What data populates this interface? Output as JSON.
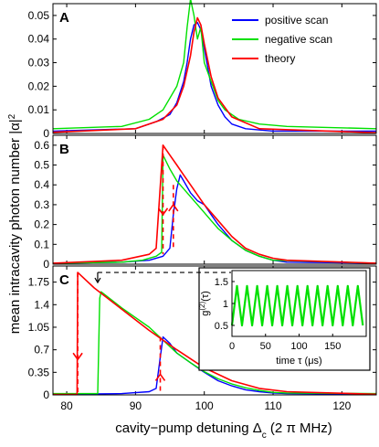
{
  "colors": {
    "positive": "#0000ff",
    "negative": "#00e000",
    "theory": "#ff0000",
    "arrow": "#ff0000",
    "axis": "#000000"
  },
  "figure": {
    "ylabel": "mean intracavity photon number |α|²",
    "ylabel_main": "mean intracavity photon number |α|",
    "ylabel_sup": "2",
    "xlabel_main": "cavity−pump detuning Δ",
    "xlabel_sub": "c",
    "xlabel_tail": " (2 π MHz)"
  },
  "legend": {
    "positive": "positive scan",
    "negative": "negative scan",
    "theory": "theory"
  },
  "inset": {
    "ylabel_main": "g",
    "ylabel_sup": "(2)",
    "ylabel_tail": "(τ)",
    "xlabel": "time τ (μs)"
  },
  "chart_data": [
    {
      "type": "line",
      "panel_label": "A",
      "xlim": [
        78,
        125
      ],
      "ylim": [
        0,
        0.055
      ],
      "yticks": [
        "0",
        "0.01",
        "0.02",
        "0.03",
        "0.04",
        "0.05"
      ],
      "ytick_values": [
        0,
        0.01,
        0.02,
        0.03,
        0.04,
        0.05
      ],
      "xticks": [],
      "series": [
        {
          "name": "positive scan",
          "x": [
            78,
            90,
            93,
            95,
            96,
            97,
            97.5,
            98,
            98.5,
            99,
            99.5,
            100,
            100.5,
            101,
            102,
            103,
            104,
            106,
            110,
            125
          ],
          "y": [
            0.001,
            0.002,
            0.005,
            0.008,
            0.013,
            0.022,
            0.03,
            0.04,
            0.046,
            0.047,
            0.044,
            0.036,
            0.028,
            0.02,
            0.012,
            0.007,
            0.004,
            0.002,
            0.001,
            0.001
          ]
        },
        {
          "name": "negative scan",
          "x": [
            78,
            88,
            92,
            94,
            96,
            97,
            97.5,
            98,
            98.5,
            99,
            99.5,
            100,
            101,
            102,
            103,
            105,
            108,
            112,
            125
          ],
          "y": [
            0.002,
            0.003,
            0.006,
            0.01,
            0.02,
            0.03,
            0.045,
            0.057,
            0.05,
            0.04,
            0.045,
            0.03,
            0.022,
            0.014,
            0.01,
            0.006,
            0.004,
            0.003,
            0.002
          ]
        },
        {
          "name": "theory",
          "x": [
            78,
            90,
            94,
            96,
            97,
            98,
            98.5,
            99,
            99.5,
            100,
            101,
            102,
            104,
            108,
            125
          ],
          "y": [
            0.0005,
            0.002,
            0.006,
            0.012,
            0.02,
            0.033,
            0.043,
            0.049,
            0.046,
            0.038,
            0.024,
            0.015,
            0.007,
            0.002,
            0.0003
          ]
        }
      ]
    },
    {
      "type": "line",
      "panel_label": "B",
      "xlim": [
        78,
        125
      ],
      "ylim": [
        0,
        0.65
      ],
      "yticks": [
        "0",
        "0.1",
        "0.2",
        "0.3",
        "0.4",
        "0.5",
        "0.6"
      ],
      "ytick_values": [
        0,
        0.1,
        0.2,
        0.3,
        0.4,
        0.5,
        0.6
      ],
      "xticks": [],
      "series": [
        {
          "name": "positive scan",
          "x": [
            78,
            88,
            92,
            94,
            95,
            95.5,
            96,
            96.5,
            97,
            98,
            99,
            100,
            101,
            102,
            103,
            104,
            106,
            108,
            110,
            112,
            125
          ],
          "y": [
            0.005,
            0.01,
            0.02,
            0.04,
            0.08,
            0.25,
            0.38,
            0.45,
            0.42,
            0.36,
            0.32,
            0.3,
            0.25,
            0.2,
            0.16,
            0.12,
            0.07,
            0.04,
            0.02,
            0.01,
            0.005
          ]
        },
        {
          "name": "negative scan",
          "x": [
            78,
            88,
            91,
            93,
            93.8,
            94,
            95,
            96,
            97,
            98,
            99,
            100,
            101,
            102,
            103,
            104,
            106,
            108,
            110,
            125
          ],
          "y": [
            0.005,
            0.01,
            0.02,
            0.04,
            0.06,
            0.55,
            0.48,
            0.42,
            0.38,
            0.34,
            0.3,
            0.26,
            0.22,
            0.18,
            0.15,
            0.12,
            0.07,
            0.04,
            0.02,
            0.005
          ]
        },
        {
          "name": "theory",
          "x": [
            78,
            88,
            92,
            93,
            94,
            95,
            96,
            97,
            98,
            100,
            102,
            104,
            106,
            108,
            110,
            112,
            125
          ],
          "y": [
            0.005,
            0.02,
            0.05,
            0.08,
            0.6,
            0.55,
            0.5,
            0.45,
            0.4,
            0.3,
            0.22,
            0.14,
            0.08,
            0.05,
            0.03,
            0.02,
            0.005
          ]
        }
      ]
    },
    {
      "type": "line",
      "panel_label": "C",
      "xlim": [
        78,
        125
      ],
      "ylim": [
        0,
        2.0
      ],
      "yticks": [
        "0",
        "0.35",
        "0.7",
        "1.05",
        "1.4",
        "1.75"
      ],
      "ytick_values": [
        0,
        0.35,
        0.7,
        1.05,
        1.4,
        1.75
      ],
      "xticks": [
        "80",
        "90",
        "100",
        "110",
        "120"
      ],
      "xtick_values": [
        80,
        90,
        100,
        110,
        120
      ],
      "series": [
        {
          "name": "positive scan",
          "x": [
            78,
            88,
            92,
            93,
            93.5,
            94,
            95,
            96,
            98,
            100,
            102,
            104,
            106,
            108,
            110,
            112,
            125
          ],
          "y": [
            0.01,
            0.02,
            0.05,
            0.1,
            0.5,
            0.9,
            0.8,
            0.65,
            0.5,
            0.35,
            0.22,
            0.14,
            0.08,
            0.05,
            0.03,
            0.02,
            0.01
          ]
        },
        {
          "name": "negative scan",
          "x": [
            78,
            84.5,
            84.8,
            85,
            88,
            90,
            92,
            94,
            96,
            98,
            100,
            102,
            104,
            106,
            108,
            110,
            112,
            125
          ],
          "y": [
            0.02,
            0.02,
            1.5,
            1.6,
            1.35,
            1.2,
            1.05,
            0.85,
            0.65,
            0.5,
            0.36,
            0.25,
            0.17,
            0.11,
            0.07,
            0.04,
            0.03,
            0.02
          ]
        },
        {
          "name": "theory",
          "x": [
            78,
            81.5,
            81.6,
            84,
            88,
            92,
            96,
            100,
            104,
            108,
            112,
            125
          ],
          "y": [
            0.005,
            0.005,
            1.9,
            1.66,
            1.33,
            1.0,
            0.7,
            0.42,
            0.22,
            0.1,
            0.05,
            0.01
          ]
        }
      ],
      "inset": {
        "type": "line",
        "xlim": [
          0,
          200
        ],
        "ylim": [
          0.25,
          1.75
        ],
        "xticks": [
          "0",
          "50",
          "100",
          "150"
        ],
        "xtick_values": [
          0,
          50,
          100,
          150
        ],
        "yticks": [
          "0.5",
          "1",
          "1.5"
        ],
        "ytick_values": [
          0.5,
          1,
          1.5
        ],
        "series": [
          {
            "x": [
              0,
              7.5,
              15,
              22.5,
              30,
              37.5,
              45,
              52.5,
              60,
              67.5,
              75,
              82.5,
              90,
              97.5,
              105,
              112.5,
              120,
              127.5,
              135,
              142.5,
              150,
              157.5,
              165,
              172.5,
              180,
              187.5,
              195
            ],
            "y": [
              0.5,
              1.4,
              0.5,
              1.4,
              0.5,
              1.4,
              0.5,
              1.4,
              0.5,
              1.4,
              0.5,
              1.4,
              0.5,
              1.4,
              0.5,
              1.4,
              0.5,
              1.4,
              0.5,
              1.4,
              0.5,
              1.4,
              0.5,
              1.4,
              0.5,
              1.4,
              0.5
            ]
          }
        ]
      }
    }
  ]
}
